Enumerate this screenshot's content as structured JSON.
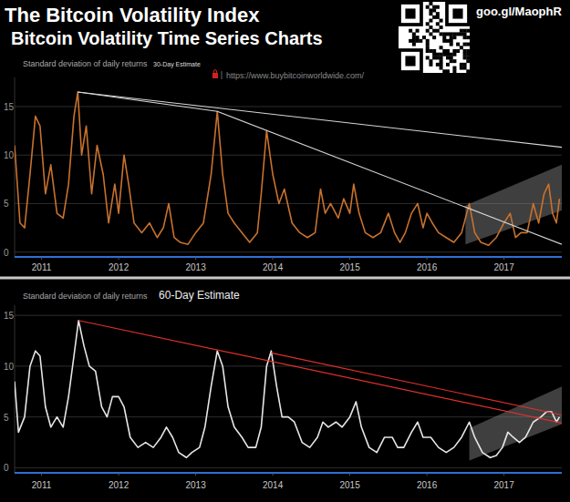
{
  "header": {
    "title": "The Bitcoin Volatility Index",
    "subtitle": "Bitcoin Volatility Time Series Charts",
    "link": "goo.gl/MaophR"
  },
  "chart_data": [
    {
      "type": "line",
      "axis_label": "Standard deviation of daily returns",
      "estimate": "30-Day Estimate",
      "source": "https://www.buybitcoinworldwide.com/",
      "xlim": [
        2010.65,
        2017.75
      ],
      "xticks": [
        2011,
        2012,
        2013,
        2014,
        2015,
        2016,
        2017
      ],
      "ylim": [
        -0.5,
        18
      ],
      "yticks": [
        0,
        5,
        10,
        15
      ],
      "grid": true,
      "x": [
        2010.65,
        2010.72,
        2010.78,
        2010.85,
        2010.92,
        2010.98,
        2011.05,
        2011.12,
        2011.2,
        2011.28,
        2011.35,
        2011.42,
        2011.47,
        2011.52,
        2011.58,
        2011.65,
        2011.72,
        2011.8,
        2011.87,
        2011.95,
        2012.0,
        2012.07,
        2012.13,
        2012.2,
        2012.3,
        2012.4,
        2012.5,
        2012.58,
        2012.65,
        2012.72,
        2012.8,
        2012.9,
        2013.0,
        2013.1,
        2013.2,
        2013.28,
        2013.35,
        2013.42,
        2013.5,
        2013.6,
        2013.7,
        2013.8,
        2013.85,
        2013.92,
        2014.0,
        2014.08,
        2014.15,
        2014.25,
        2014.35,
        2014.45,
        2014.55,
        2014.62,
        2014.68,
        2014.75,
        2014.85,
        2014.92,
        2015.0,
        2015.05,
        2015.12,
        2015.2,
        2015.3,
        2015.4,
        2015.5,
        2015.58,
        2015.65,
        2015.72,
        2015.8,
        2015.88,
        2015.95,
        2016.0,
        2016.07,
        2016.15,
        2016.25,
        2016.35,
        2016.45,
        2016.55,
        2016.62,
        2016.7,
        2016.8,
        2016.9,
        2017.0,
        2017.08,
        2017.15,
        2017.22,
        2017.3,
        2017.38,
        2017.45,
        2017.52,
        2017.58,
        2017.63,
        2017.68,
        2017.72
      ],
      "series": [
        {
          "type": "band",
          "color": "#8c8c8c",
          "x": [
            2016.5,
            2017.75
          ],
          "values": [
            4.8,
            9
          ],
          "lower": [
            0.8,
            4.3
          ]
        },
        {
          "color": "#c8722e",
          "values": [
            11,
            3,
            2.5,
            8,
            14,
            13,
            6,
            9,
            4,
            3.5,
            7,
            14,
            16.5,
            10,
            13,
            6,
            11,
            8,
            3,
            7,
            4,
            10,
            7,
            3,
            2,
            3,
            1.5,
            2.5,
            5,
            1.5,
            1,
            0.8,
            2,
            3,
            8,
            14.5,
            8,
            4,
            3,
            2,
            1,
            2,
            6,
            12.5,
            8,
            5,
            6.5,
            3,
            2,
            1.5,
            2,
            6.5,
            4,
            5,
            3.5,
            5.5,
            4,
            7,
            4,
            2,
            1.5,
            2,
            4,
            2,
            1,
            2,
            4,
            5,
            2.5,
            4,
            3,
            2,
            1.5,
            1,
            2,
            5,
            2,
            1,
            0.7,
            1.5,
            3,
            4,
            1.5,
            2,
            2,
            5,
            3,
            6,
            7,
            4,
            3,
            5.5
          ]
        },
        {
          "type": "line",
          "color": "#d8d8d8",
          "x": [
            2011.47,
            2017.75
          ],
          "values": [
            16.5,
            10.8
          ]
        },
        {
          "type": "line",
          "color": "#d8d8d8",
          "x": [
            2011.47,
            2013.28,
            2017.75
          ],
          "values": [
            16.5,
            14.5,
            0.8
          ]
        }
      ]
    },
    {
      "type": "line",
      "axis_label": "Standard deviation of daily returns",
      "estimate": "60-Day Estimate",
      "xlim": [
        2010.65,
        2017.75
      ],
      "xticks": [
        2011,
        2012,
        2013,
        2014,
        2015,
        2016,
        2017
      ],
      "ylim": [
        -0.5,
        16
      ],
      "yticks": [
        0,
        5,
        10,
        15
      ],
      "grid": true,
      "x": [
        2010.65,
        2010.7,
        2010.78,
        2010.85,
        2010.92,
        2010.98,
        2011.05,
        2011.12,
        2011.2,
        2011.28,
        2011.35,
        2011.42,
        2011.48,
        2011.55,
        2011.62,
        2011.7,
        2011.78,
        2011.85,
        2011.92,
        2012.0,
        2012.07,
        2012.15,
        2012.25,
        2012.35,
        2012.45,
        2012.55,
        2012.62,
        2012.7,
        2012.78,
        2012.88,
        2012.95,
        2013.05,
        2013.12,
        2013.2,
        2013.28,
        2013.35,
        2013.42,
        2013.5,
        2013.6,
        2013.68,
        2013.78,
        2013.85,
        2013.92,
        2013.98,
        2014.05,
        2014.12,
        2014.2,
        2014.28,
        2014.38,
        2014.48,
        2014.58,
        2014.65,
        2014.72,
        2014.82,
        2014.9,
        2015.0,
        2015.08,
        2015.15,
        2015.25,
        2015.35,
        2015.45,
        2015.55,
        2015.62,
        2015.7,
        2015.8,
        2015.88,
        2015.95,
        2016.05,
        2016.15,
        2016.25,
        2016.35,
        2016.45,
        2016.55,
        2016.62,
        2016.72,
        2016.82,
        2016.9,
        2016.98,
        2017.05,
        2017.12,
        2017.2,
        2017.28,
        2017.38,
        2017.48,
        2017.55,
        2017.62,
        2017.68,
        2017.72
      ],
      "series": [
        {
          "type": "band",
          "color": "#8c8c8c",
          "x": [
            2016.55,
            2017.75
          ],
          "values": [
            3.9,
            8
          ],
          "lower": [
            0.7,
            4.3
          ]
        },
        {
          "color": "#e6e6e6",
          "values": [
            8.5,
            3.5,
            5,
            10,
            11.5,
            11,
            6,
            4,
            5,
            4,
            7,
            11,
            14.5,
            12,
            10,
            9.5,
            6,
            5,
            7,
            7,
            6,
            3,
            2,
            2.5,
            2,
            3,
            4,
            3,
            1.5,
            1,
            1.5,
            2,
            4,
            8,
            11.5,
            10,
            6,
            4,
            3,
            2,
            2,
            4,
            10,
            11.5,
            8,
            5,
            5,
            4.5,
            2.5,
            2,
            3,
            4.5,
            4,
            4.5,
            4,
            5,
            6.5,
            4,
            2,
            1.5,
            3,
            3,
            2,
            2,
            3.5,
            4.5,
            3,
            3,
            2,
            1.5,
            2,
            3,
            4.5,
            3,
            1.5,
            1,
            1.2,
            2,
            3.5,
            3,
            2.5,
            3,
            4.5,
            5,
            5.5,
            5.5,
            4.5,
            5
          ]
        },
        {
          "type": "line",
          "color": "#e0302a",
          "x": [
            2011.48,
            2017.75
          ],
          "values": [
            14.5,
            4.4
          ]
        },
        {
          "type": "line",
          "color": "#e0302a",
          "x": [
            2013.98,
            2017.75
          ],
          "values": [
            11.3,
            5.2
          ]
        }
      ]
    }
  ]
}
